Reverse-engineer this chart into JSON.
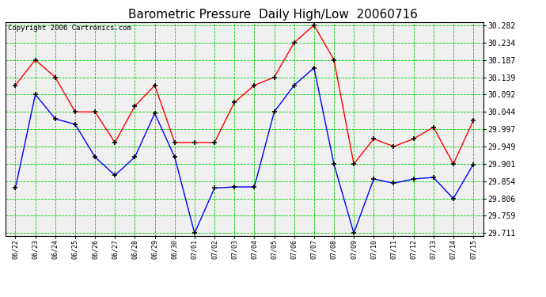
{
  "title": "Barometric Pressure  Daily High/Low  20060716",
  "copyright": "Copyright 2006 Cartronics.com",
  "dates": [
    "06/22",
    "06/23",
    "06/24",
    "06/25",
    "06/26",
    "06/27",
    "06/28",
    "06/29",
    "06/30",
    "07/01",
    "07/02",
    "07/03",
    "07/04",
    "07/05",
    "07/06",
    "07/07",
    "07/08",
    "07/09",
    "07/10",
    "07/11",
    "07/12",
    "07/13",
    "07/14",
    "07/15"
  ],
  "high_values": [
    30.117,
    30.187,
    30.139,
    30.044,
    30.044,
    29.96,
    30.06,
    30.117,
    29.96,
    29.96,
    29.96,
    30.07,
    30.117,
    30.139,
    30.234,
    30.282,
    30.187,
    29.901,
    29.97,
    29.949,
    29.97,
    30.002,
    29.901,
    30.02
  ],
  "low_values": [
    29.835,
    30.092,
    30.025,
    30.01,
    29.92,
    29.87,
    29.92,
    30.04,
    29.92,
    29.711,
    29.835,
    29.838,
    29.838,
    30.044,
    30.117,
    30.165,
    29.901,
    29.711,
    29.86,
    29.848,
    29.86,
    29.864,
    29.806,
    29.9
  ],
  "high_color": "#ff0000",
  "low_color": "#0000ff",
  "bg_color": "#ffffff",
  "plot_bg_color": "#f0f0f0",
  "grid_color": "#00cc00",
  "title_fontsize": 11,
  "copyright_fontsize": 6.5,
  "ymin": 29.711,
  "ymax": 30.282,
  "ytick_step": 0.048,
  "yticks": [
    29.711,
    29.759,
    29.806,
    29.854,
    29.901,
    29.949,
    29.997,
    30.044,
    30.092,
    30.139,
    30.187,
    30.234,
    30.282
  ]
}
